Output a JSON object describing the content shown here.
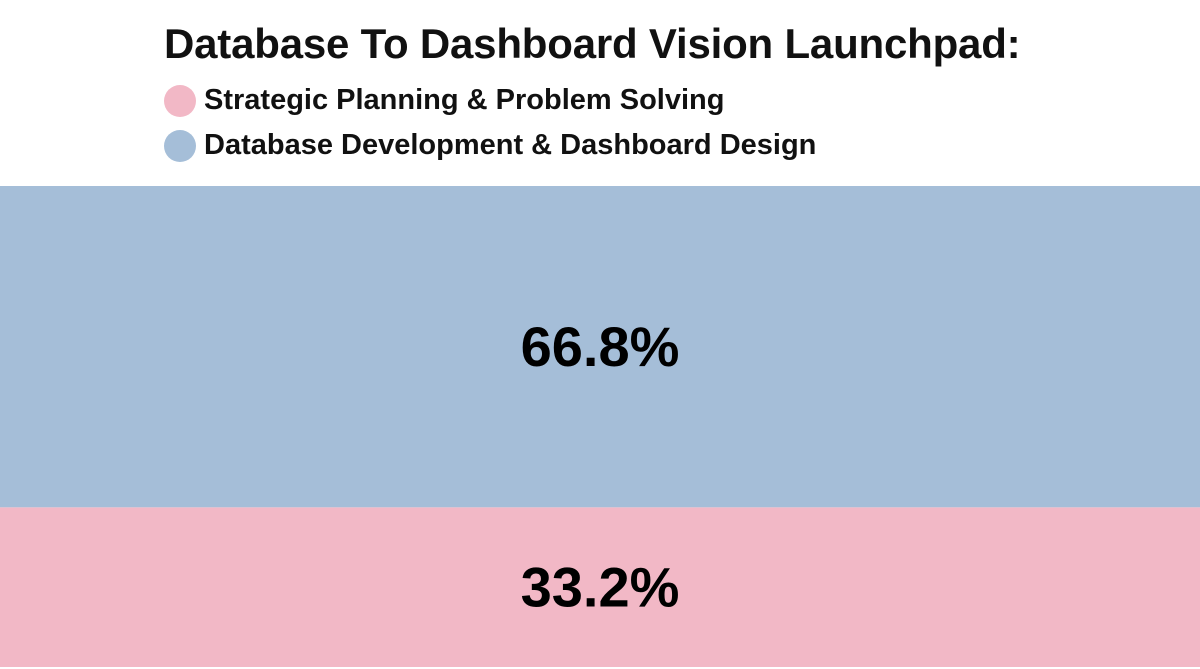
{
  "chart_data": {
    "type": "bar",
    "subtype": "100%-stacked-single-bar",
    "title": "Database To Dashboard Vision Launchpad:",
    "legend_position": "top-left",
    "series": [
      {
        "name": "Strategic Planning & Problem Solving",
        "value": 33.2,
        "label": "33.2%",
        "color": "#f2b8c6"
      },
      {
        "name": "Database Development & Dashboard Design",
        "value": 66.8,
        "label": "66.8%",
        "color": "#a5bed8"
      }
    ],
    "stack_order_bottom_to_top": [
      0,
      1
    ],
    "total": 100
  }
}
